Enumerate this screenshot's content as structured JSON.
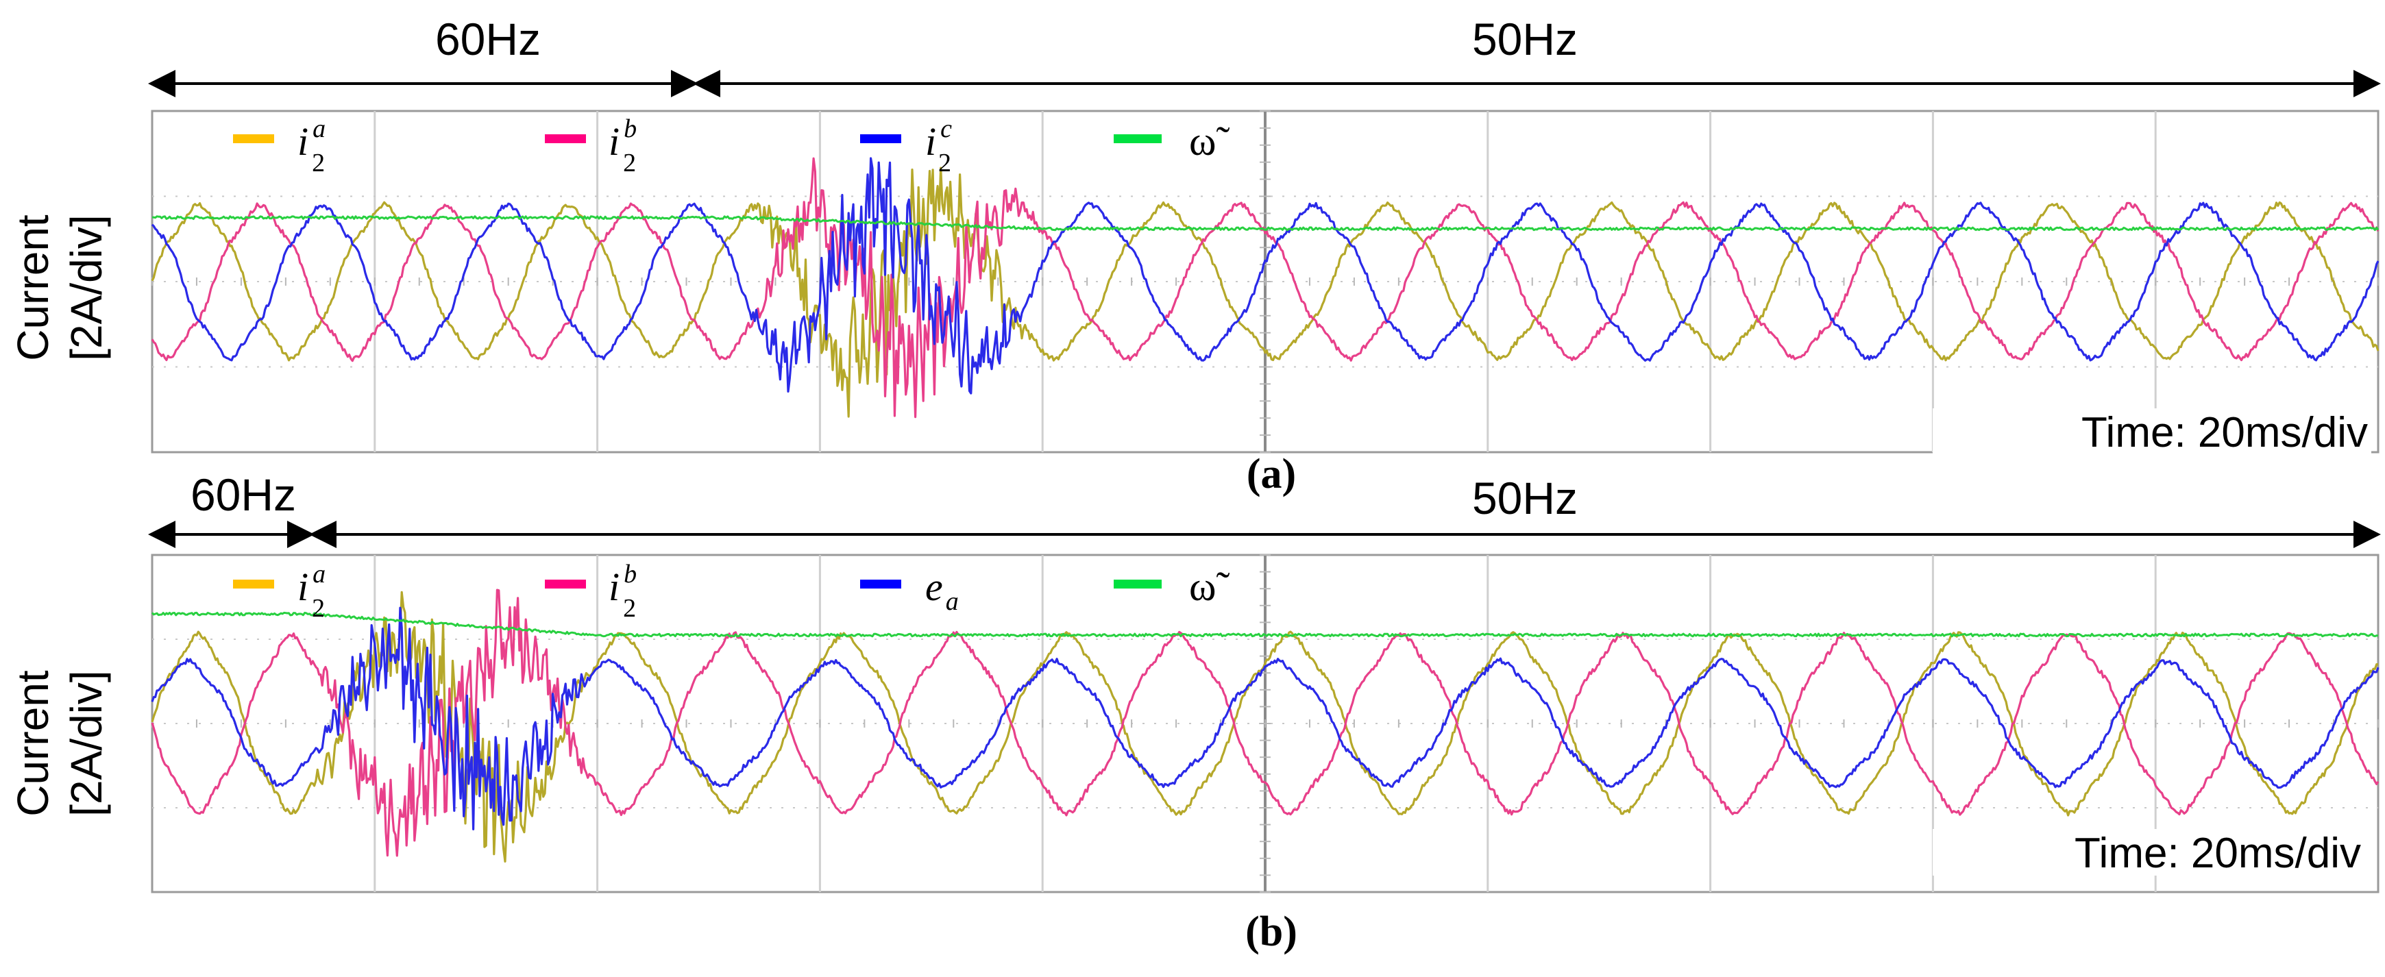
{
  "chart_data": [
    {
      "type": "line",
      "panel_label": "(a)",
      "ylabel_line1": "Current",
      "ylabel_line2": "[2A/div]",
      "time_scale": "Time: 20ms/div",
      "freq_regions": [
        {
          "label": "60Hz",
          "from_ms": 0,
          "to_ms": 70
        },
        {
          "label": "50Hz",
          "from_ms": 70,
          "to_ms": 200
        }
      ],
      "x_divisions": 10,
      "y_divisions": 4,
      "xlim_ms": [
        0,
        200
      ],
      "ylim_div": [
        -2,
        2
      ],
      "legend": [
        {
          "base": "i",
          "sub": "2",
          "sup": "a",
          "color": "#FFC000"
        },
        {
          "base": "i",
          "sub": "2",
          "sup": "b",
          "color": "#FF0080"
        },
        {
          "base": "i",
          "sub": "2",
          "sup": "c",
          "color": "#0000FF"
        },
        {
          "base": "ω̃",
          "sub": "",
          "sup": "",
          "color": "#00E040"
        }
      ],
      "series": [
        {
          "color": "#B5A82A",
          "waveform": "sine",
          "amplitude_div": 0.85,
          "phase_deg": 0
        },
        {
          "color": "#E8408A",
          "waveform": "sine",
          "amplitude_div": 0.85,
          "phase_deg": -120
        },
        {
          "color": "#2A2AE8",
          "waveform": "sine",
          "amplitude_div": 0.85,
          "phase_deg": 120
        },
        {
          "color": "#28D040",
          "waveform": "omega",
          "level_60Hz_div": 0.75,
          "level_50Hz_div": 0.62
        }
      ],
      "transient_ms": [
        53,
        80
      ]
    },
    {
      "type": "line",
      "panel_label": "(b)",
      "ylabel_line1": "Current",
      "ylabel_line2": "[2A/div]",
      "time_scale": "Time: 20ms/div",
      "freq_regions": [
        {
          "label": "60Hz",
          "from_ms": 0,
          "to_ms": 14
        },
        {
          "label": "50Hz",
          "from_ms": 14,
          "to_ms": 200
        }
      ],
      "x_divisions": 10,
      "y_divisions": 4,
      "xlim_ms": [
        0,
        200
      ],
      "ylim_div": [
        -2,
        2
      ],
      "legend": [
        {
          "base": "i",
          "sub": "2",
          "sup": "a",
          "color": "#FFC000"
        },
        {
          "base": "i",
          "sub": "2",
          "sup": "b",
          "color": "#FF0080"
        },
        {
          "base": "e",
          "sub": "a",
          "sup": "",
          "color": "#0000FF"
        },
        {
          "base": "ω̃",
          "sub": "",
          "sup": "",
          "color": "#00E040"
        }
      ],
      "series": [
        {
          "color": "#B5A82A",
          "waveform": "sine",
          "amplitude_div": 1.0,
          "phase_deg": 0
        },
        {
          "color": "#E8408A",
          "waveform": "sine",
          "amplitude_div": 1.0,
          "phase_deg": 180
        },
        {
          "color": "#2A2AE8",
          "waveform": "sine",
          "amplitude_div": 0.7,
          "phase_deg": 20
        },
        {
          "color": "#28D040",
          "waveform": "omega",
          "level_60Hz_div": 1.3,
          "level_50Hz_div": 1.05
        }
      ],
      "transient_ms": [
        14,
        40
      ]
    }
  ]
}
